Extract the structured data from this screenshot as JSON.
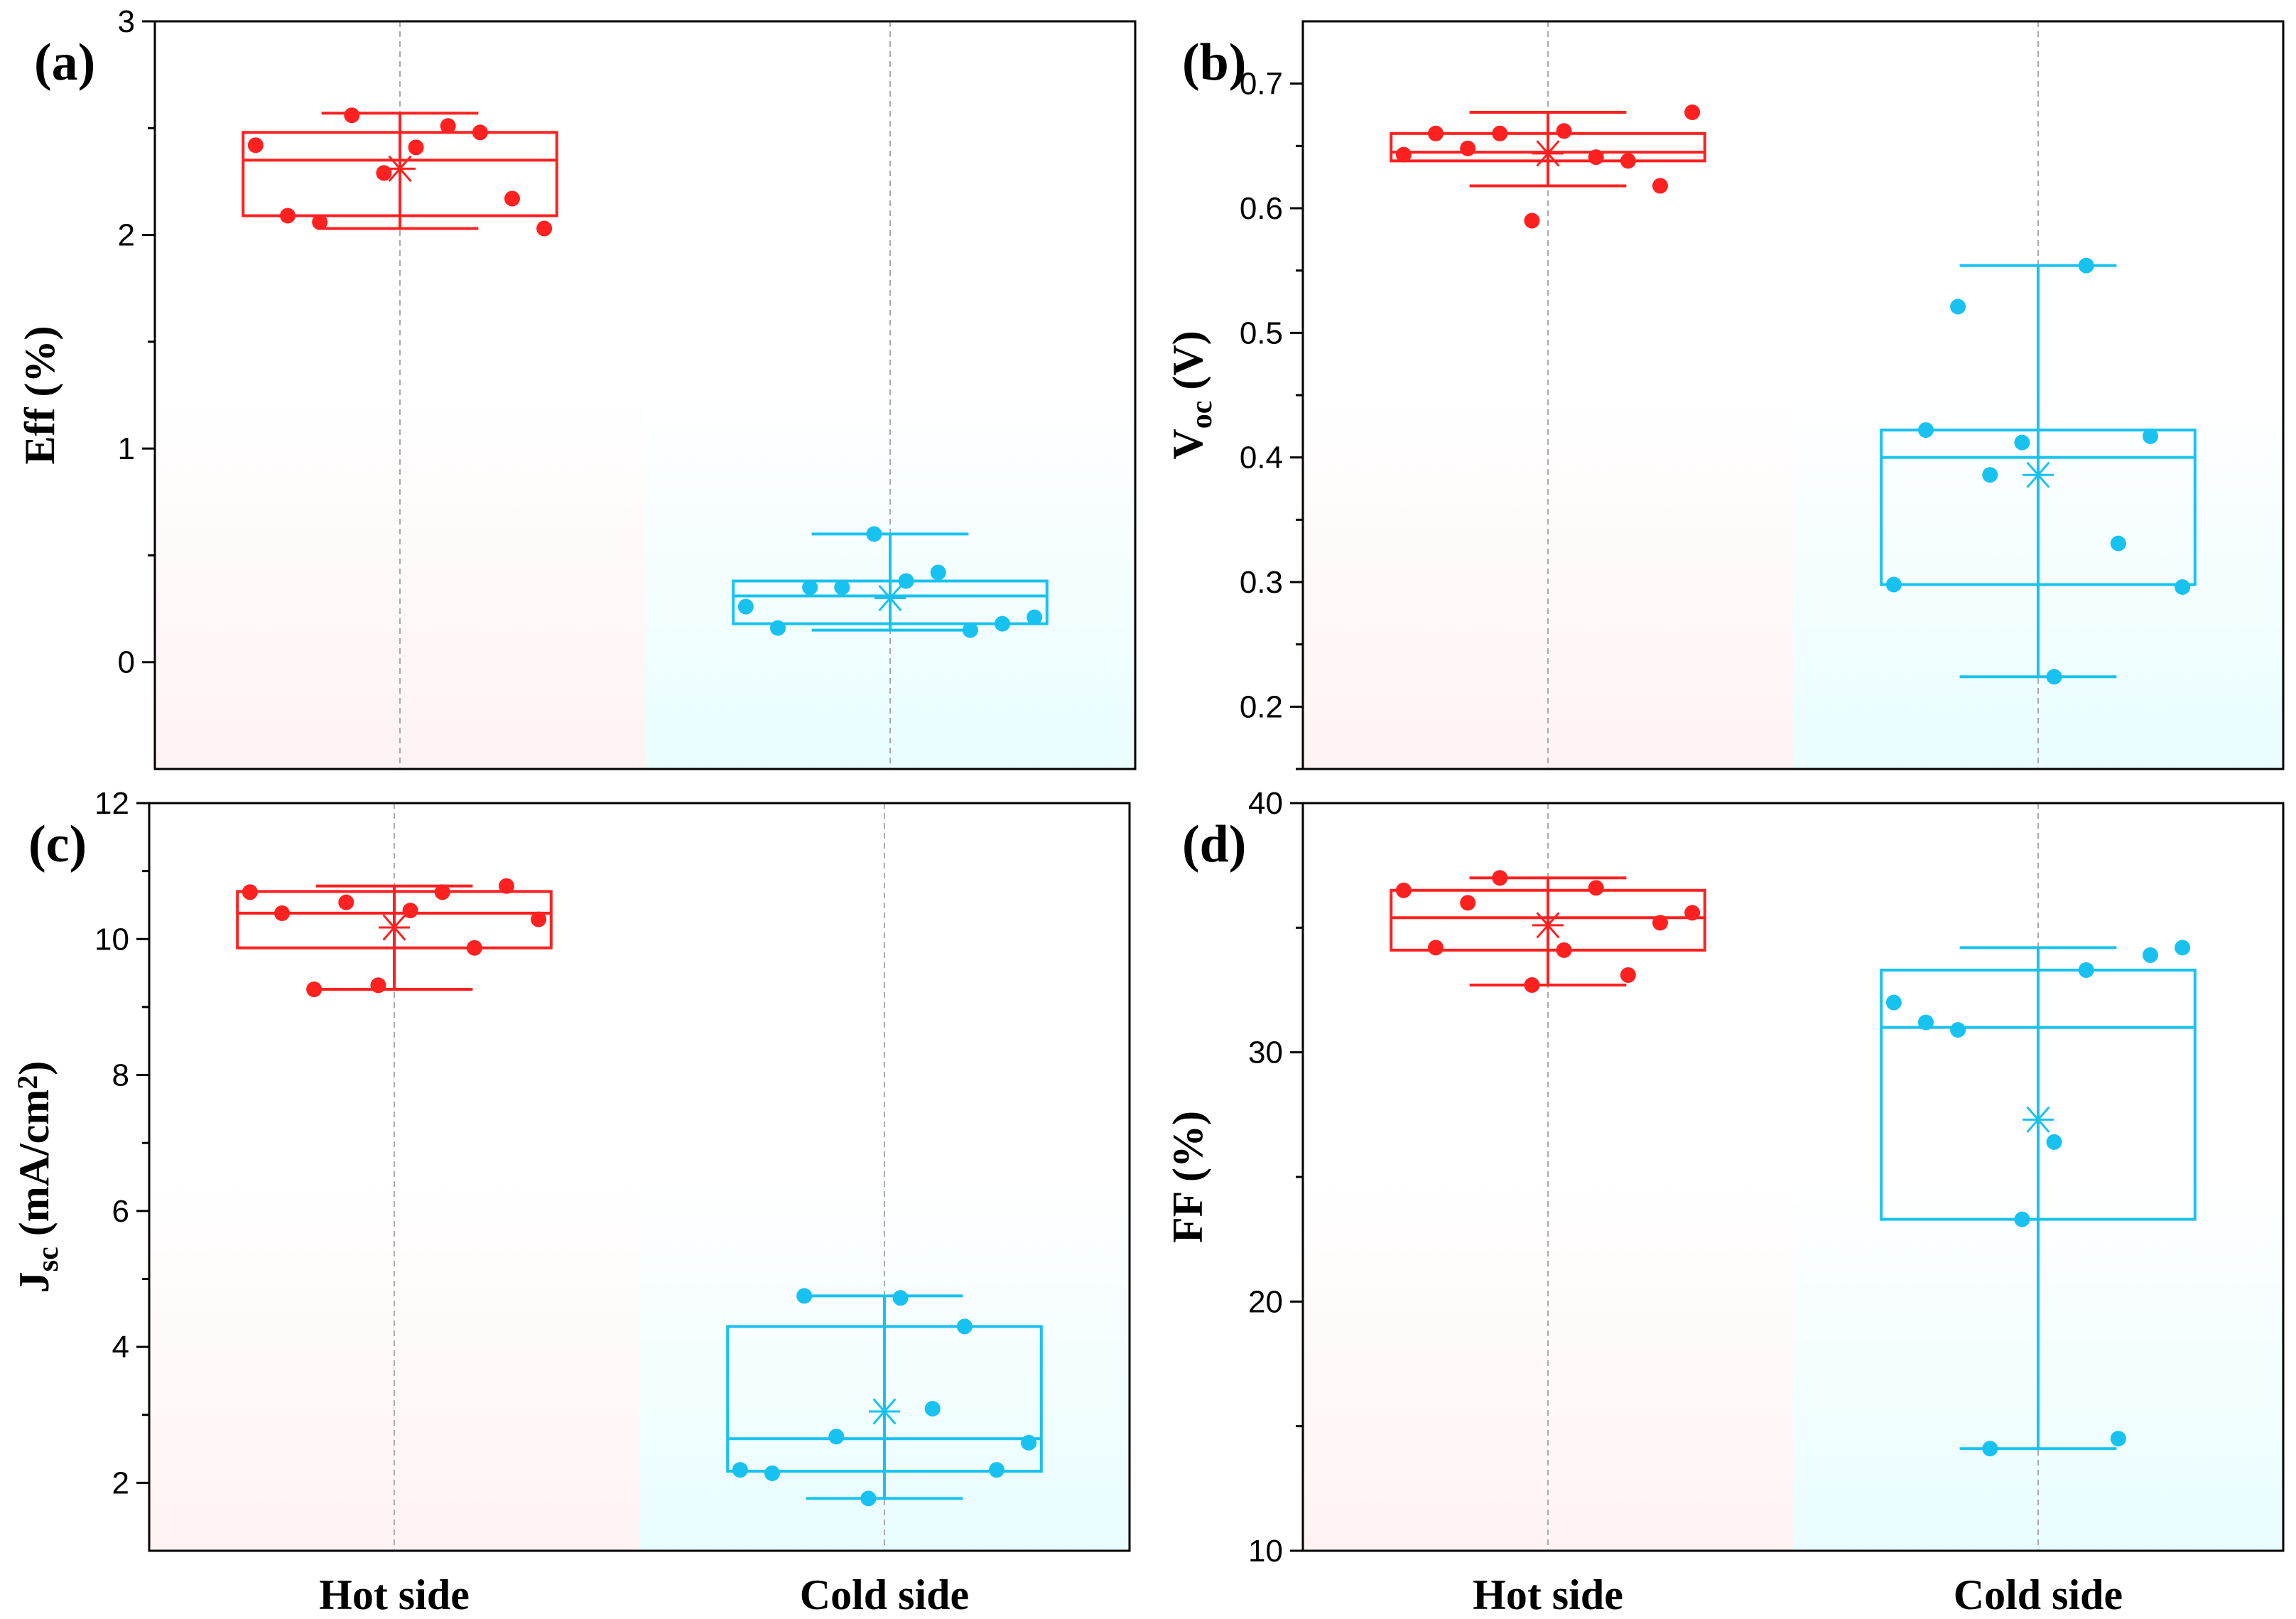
{
  "colors": {
    "hot": "#ff2020",
    "cold": "#18c2f0",
    "hot_bg": "#fff3f3",
    "cold_bg": "#e9fdff"
  },
  "categories": [
    "Hot side",
    "Cold side"
  ],
  "chart_data": [
    {
      "type": "box",
      "panel": "(a)",
      "ylabel": "Eff (%)",
      "ylabel_parts": [
        {
          "t": "Eff (%)",
          "sub": false
        }
      ],
      "ylim": [
        -0.5,
        3
      ],
      "yticks": [
        0,
        1,
        2,
        3
      ],
      "ytick_labels": [
        "0",
        "1",
        "2",
        "3"
      ],
      "categories": [
        "Hot side",
        "Cold side"
      ],
      "series": [
        {
          "name": "Hot side",
          "whisker_low": 2.03,
          "q1": 2.09,
          "median": 2.35,
          "q3": 2.48,
          "whisker_high": 2.57,
          "mean": 2.31,
          "points": [
            2.42,
            2.09,
            2.06,
            2.56,
            2.29,
            2.41,
            2.51,
            2.48,
            2.17,
            2.03
          ]
        },
        {
          "name": "Cold side",
          "whisker_low": 0.15,
          "q1": 0.18,
          "median": 0.31,
          "q3": 0.38,
          "whisker_high": 0.6,
          "mean": 0.3,
          "points": [
            0.26,
            0.16,
            0.35,
            0.35,
            0.6,
            0.38,
            0.42,
            0.15,
            0.18,
            0.21
          ]
        }
      ]
    },
    {
      "type": "box",
      "panel": "(b)",
      "ylabel": "Voc (V)",
      "ylabel_parts": [
        {
          "t": "V",
          "sub": false
        },
        {
          "t": "oc",
          "sub": true
        },
        {
          "t": " (V)",
          "sub": false
        }
      ],
      "ylim": [
        0.15,
        0.75
      ],
      "yticks": [
        0.2,
        0.3,
        0.4,
        0.5,
        0.6,
        0.7
      ],
      "ytick_labels": [
        "0.2",
        "0.3",
        "0.4",
        "0.5",
        "0.6",
        "0.7"
      ],
      "categories": [
        "Hot side",
        "Cold side"
      ],
      "series": [
        {
          "name": "Hot side",
          "whisker_low": 0.618,
          "q1": 0.638,
          "median": 0.645,
          "q3": 0.66,
          "whisker_high": 0.677,
          "mean": 0.644,
          "points": [
            0.643,
            0.66,
            0.648,
            0.66,
            0.59,
            0.662,
            0.641,
            0.638,
            0.618,
            0.677
          ]
        },
        {
          "name": "Cold side",
          "whisker_low": 0.224,
          "q1": 0.298,
          "median": 0.4,
          "q3": 0.422,
          "whisker_high": 0.554,
          "mean": 0.386,
          "points": [
            0.298,
            0.422,
            0.521,
            0.386,
            0.412,
            0.224,
            0.554,
            0.331,
            0.417,
            0.296
          ]
        }
      ]
    },
    {
      "type": "box",
      "panel": "(c)",
      "ylabel": "Jsc (mA/cm2)",
      "ylabel_parts": [
        {
          "t": "J",
          "sub": false
        },
        {
          "t": "sc",
          "sub": true
        },
        {
          "t": " (mA/cm",
          "sub": false
        },
        {
          "t": "2",
          "sup": true
        },
        {
          "t": ")",
          "sub": false
        }
      ],
      "ylim": [
        1,
        12
      ],
      "yticks": [
        2,
        4,
        6,
        8,
        10,
        12
      ],
      "ytick_labels": [
        "2",
        "4",
        "6",
        "8",
        "10",
        "12"
      ],
      "categories": [
        "Hot side",
        "Cold side"
      ],
      "series": [
        {
          "name": "Hot side",
          "whisker_low": 9.26,
          "q1": 9.87,
          "median": 10.38,
          "q3": 10.7,
          "whisker_high": 10.78,
          "mean": 10.17,
          "points": [
            10.69,
            10.38,
            9.26,
            10.54,
            9.32,
            10.42,
            10.69,
            9.87,
            10.78,
            10.29
          ]
        },
        {
          "name": "Cold side",
          "whisker_low": 1.77,
          "q1": 2.17,
          "median": 2.65,
          "q3": 4.3,
          "whisker_high": 4.75,
          "mean": 3.05,
          "points": [
            2.19,
            2.14,
            4.75,
            2.68,
            1.77,
            4.72,
            3.09,
            4.3,
            2.19,
            2.59
          ]
        }
      ]
    },
    {
      "type": "box",
      "panel": "(d)",
      "ylabel": "FF (%)",
      "ylabel_parts": [
        {
          "t": "FF (%)",
          "sub": false
        }
      ],
      "ylim": [
        10,
        40
      ],
      "yticks": [
        10,
        20,
        30,
        40
      ],
      "ytick_labels": [
        "10",
        "20",
        "30",
        "40"
      ],
      "categories": [
        "Hot side",
        "Cold side"
      ],
      "series": [
        {
          "name": "Hot side",
          "whisker_low": 32.7,
          "q1": 34.1,
          "median": 35.4,
          "q3": 36.5,
          "whisker_high": 37.0,
          "mean": 35.1,
          "points": [
            36.5,
            34.2,
            36.0,
            37.0,
            32.7,
            34.1,
            36.6,
            33.1,
            35.2,
            35.6
          ]
        },
        {
          "name": "Cold side",
          "whisker_low": 14.1,
          "q1": 23.3,
          "median": 31.0,
          "q3": 33.3,
          "whisker_high": 34.2,
          "mean": 27.3,
          "points": [
            32.0,
            31.2,
            30.9,
            14.1,
            23.3,
            26.4,
            33.3,
            14.5,
            33.9,
            34.2
          ]
        }
      ]
    }
  ]
}
